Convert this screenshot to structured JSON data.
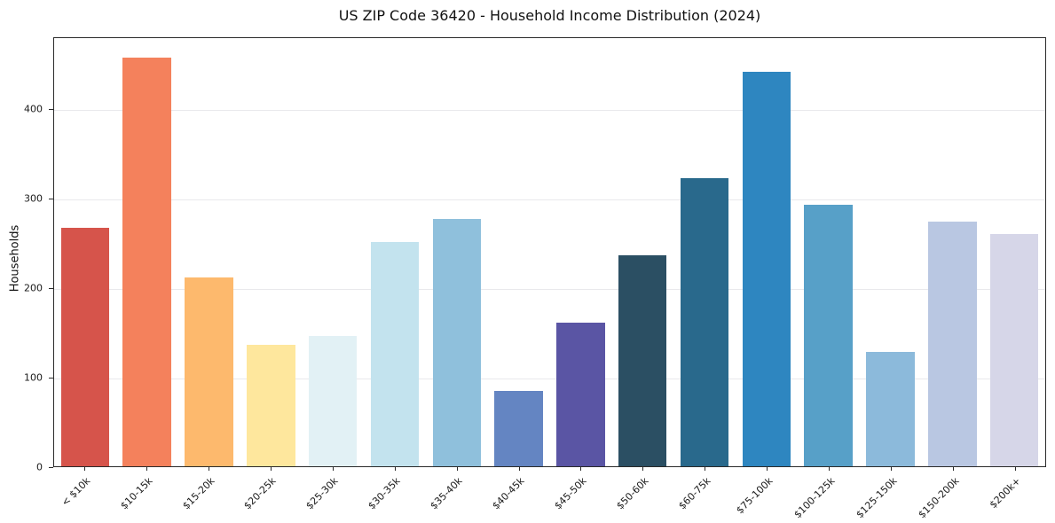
{
  "chart_data": {
    "type": "bar",
    "title": "US ZIP Code 36420 - Household Income Distribution (2024)",
    "xlabel": "",
    "ylabel": "Households",
    "ylim": [
      0,
      480
    ],
    "yticks": [
      0,
      100,
      200,
      300,
      400
    ],
    "grid": true,
    "legend": false,
    "categories": [
      "< $10k",
      "$10-15k",
      "$15-20k",
      "$20-25k",
      "$25-30k",
      "$30-35k",
      "$35-40k",
      "$40-45k",
      "$45-50k",
      "$50-60k",
      "$60-75k",
      "$75-100k",
      "$100-125k",
      "$125-150k",
      "$150-200k",
      "$200k+"
    ],
    "values": [
      267,
      458,
      212,
      136,
      146,
      251,
      277,
      84,
      161,
      237,
      323,
      442,
      293,
      128,
      274,
      260
    ],
    "bar_colors": [
      "#d6544b",
      "#f4815c",
      "#fdb96d",
      "#fee79d",
      "#e2f1f5",
      "#c3e3ee",
      "#8fc0dc",
      "#6485c2",
      "#5a55a4",
      "#2b4f63",
      "#29698c",
      "#2e86c0",
      "#57a0c8",
      "#8cbadb",
      "#b9c7e2",
      "#d6d6e8"
    ]
  }
}
